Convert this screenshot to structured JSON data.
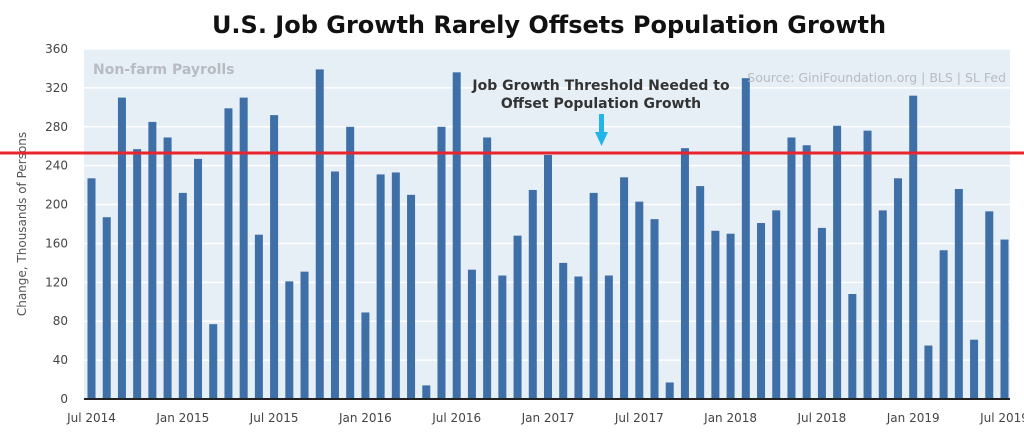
{
  "chart_data": {
    "type": "bar",
    "title": "U.S. Job Growth Rarely Offsets Population Growth",
    "subtitle": "Non-farm Payrolls",
    "source": "Source: GiniFoundation.org | BLS | SL Fed",
    "ylabel": "Change, Thousands of Persons",
    "xlabel": "",
    "ylim": [
      0,
      360
    ],
    "yticks": [
      0,
      40,
      80,
      120,
      160,
      200,
      240,
      280,
      320,
      360
    ],
    "x_tick_labels": [
      {
        "index": 0,
        "label": "Jul 2014"
      },
      {
        "index": 6,
        "label": "Jan 2015"
      },
      {
        "index": 12,
        "label": "Jul 2015"
      },
      {
        "index": 18,
        "label": "Jan 2016"
      },
      {
        "index": 24,
        "label": "Jul 2016"
      },
      {
        "index": 30,
        "label": "Jan 2017"
      },
      {
        "index": 36,
        "label": "Jul 2017"
      },
      {
        "index": 42,
        "label": "Jan 2018"
      },
      {
        "index": 48,
        "label": "Jul 2018"
      },
      {
        "index": 54,
        "label": "Jan 2019"
      },
      {
        "index": 60,
        "label": "Jul 2019"
      }
    ],
    "categories": [
      "Jul 2014",
      "Aug 2014",
      "Sep 2014",
      "Oct 2014",
      "Nov 2014",
      "Dec 2014",
      "Jan 2015",
      "Feb 2015",
      "Mar 2015",
      "Apr 2015",
      "May 2015",
      "Jun 2015",
      "Jul 2015",
      "Aug 2015",
      "Sep 2015",
      "Oct 2015",
      "Nov 2015",
      "Dec 2015",
      "Jan 2016",
      "Feb 2016",
      "Mar 2016",
      "Apr 2016",
      "May 2016",
      "Jun 2016",
      "Jul 2016",
      "Aug 2016",
      "Sep 2016",
      "Oct 2016",
      "Nov 2016",
      "Dec 2016",
      "Jan 2017",
      "Feb 2017",
      "Mar 2017",
      "Apr 2017",
      "May 2017",
      "Jun 2017",
      "Jul 2017",
      "Aug 2017",
      "Sep 2017",
      "Oct 2017",
      "Nov 2017",
      "Dec 2017",
      "Jan 2018",
      "Feb 2018",
      "Mar 2018",
      "Apr 2018",
      "May 2018",
      "Jun 2018",
      "Jul 2018",
      "Aug 2018",
      "Sep 2018",
      "Oct 2018",
      "Nov 2018",
      "Dec 2018",
      "Jan 2019",
      "Feb 2019",
      "Mar 2019",
      "Apr 2019",
      "May 2019",
      "Jun 2019",
      "Jul 2019"
    ],
    "values": [
      227,
      187,
      310,
      257,
      285,
      269,
      212,
      247,
      77,
      299,
      310,
      169,
      292,
      121,
      131,
      339,
      234,
      280,
      89,
      231,
      233,
      210,
      14,
      280,
      336,
      133,
      269,
      127,
      168,
      215,
      251,
      140,
      126,
      212,
      127,
      228,
      203,
      185,
      17,
      258,
      219,
      173,
      170,
      330,
      181,
      194,
      269,
      261,
      176,
      281,
      108,
      276,
      194,
      227,
      312,
      55,
      153,
      216,
      61,
      193,
      164
    ],
    "threshold": {
      "value": 253,
      "label_line1": "Job Growth Threshold Needed to",
      "label_line2": "Offset Population Growth",
      "color": "#e8242c"
    },
    "colors": {
      "bar": "#3f6fa7",
      "plot_bg": "#e6eef6",
      "grid": "#ffffff",
      "arrow": "#21b5e8",
      "title": "#111111",
      "axis_text": "#444444",
      "watermark": "#b8bcc2"
    },
    "grid": true,
    "legend": "none"
  }
}
